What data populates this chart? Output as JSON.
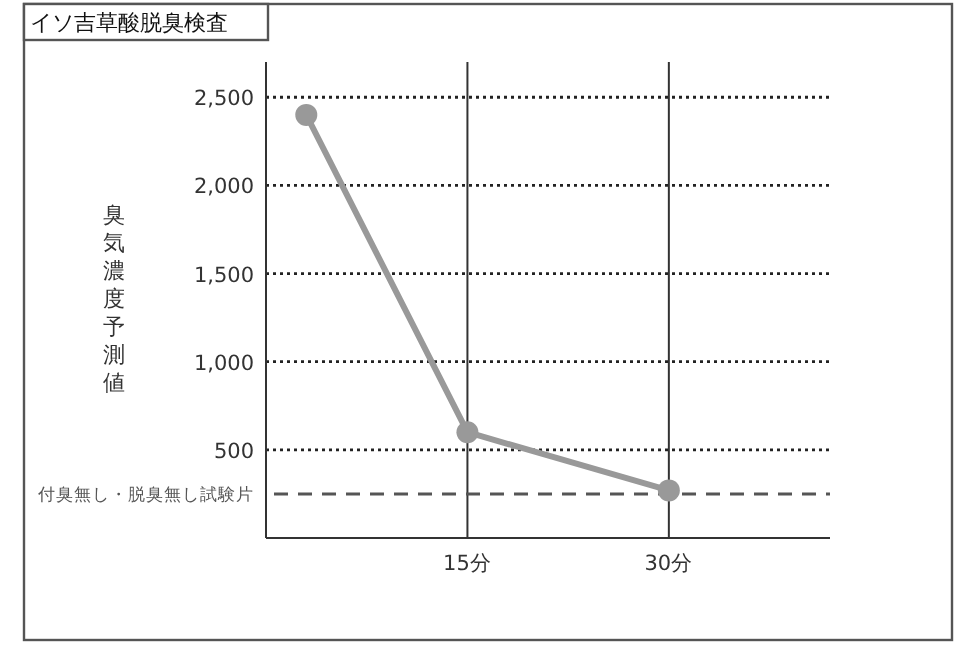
{
  "chart_data": {
    "type": "line",
    "title": "イソ吉草酸脱臭検査",
    "ylabel": "臭気濃度予測値",
    "series": [
      {
        "color": "#999999",
        "x": [
          3,
          15,
          30
        ],
        "values": [
          2400,
          600,
          270
        ]
      }
    ],
    "marker": "circle",
    "line_style": "solid",
    "xlim": [
      0,
      42
    ],
    "xticks": [
      {
        "value": 15,
        "label": "15分"
      },
      {
        "value": 30,
        "label": "30分"
      }
    ],
    "ylim": [
      0,
      2700
    ],
    "yticks": [
      500,
      {
        "value": 1000,
        "label": "1,000"
      },
      {
        "value": 1500,
        "label": "1,500"
      },
      {
        "value": 2000,
        "label": "2,000"
      },
      {
        "value": 2500,
        "label": "2,500"
      }
    ],
    "grid": true,
    "ref_lines": [
      {
        "axis": "y",
        "value": 250,
        "label": "付臭無し・脱臭無し試験片",
        "line_style": "dashed",
        "color": "#555555"
      }
    ]
  }
}
